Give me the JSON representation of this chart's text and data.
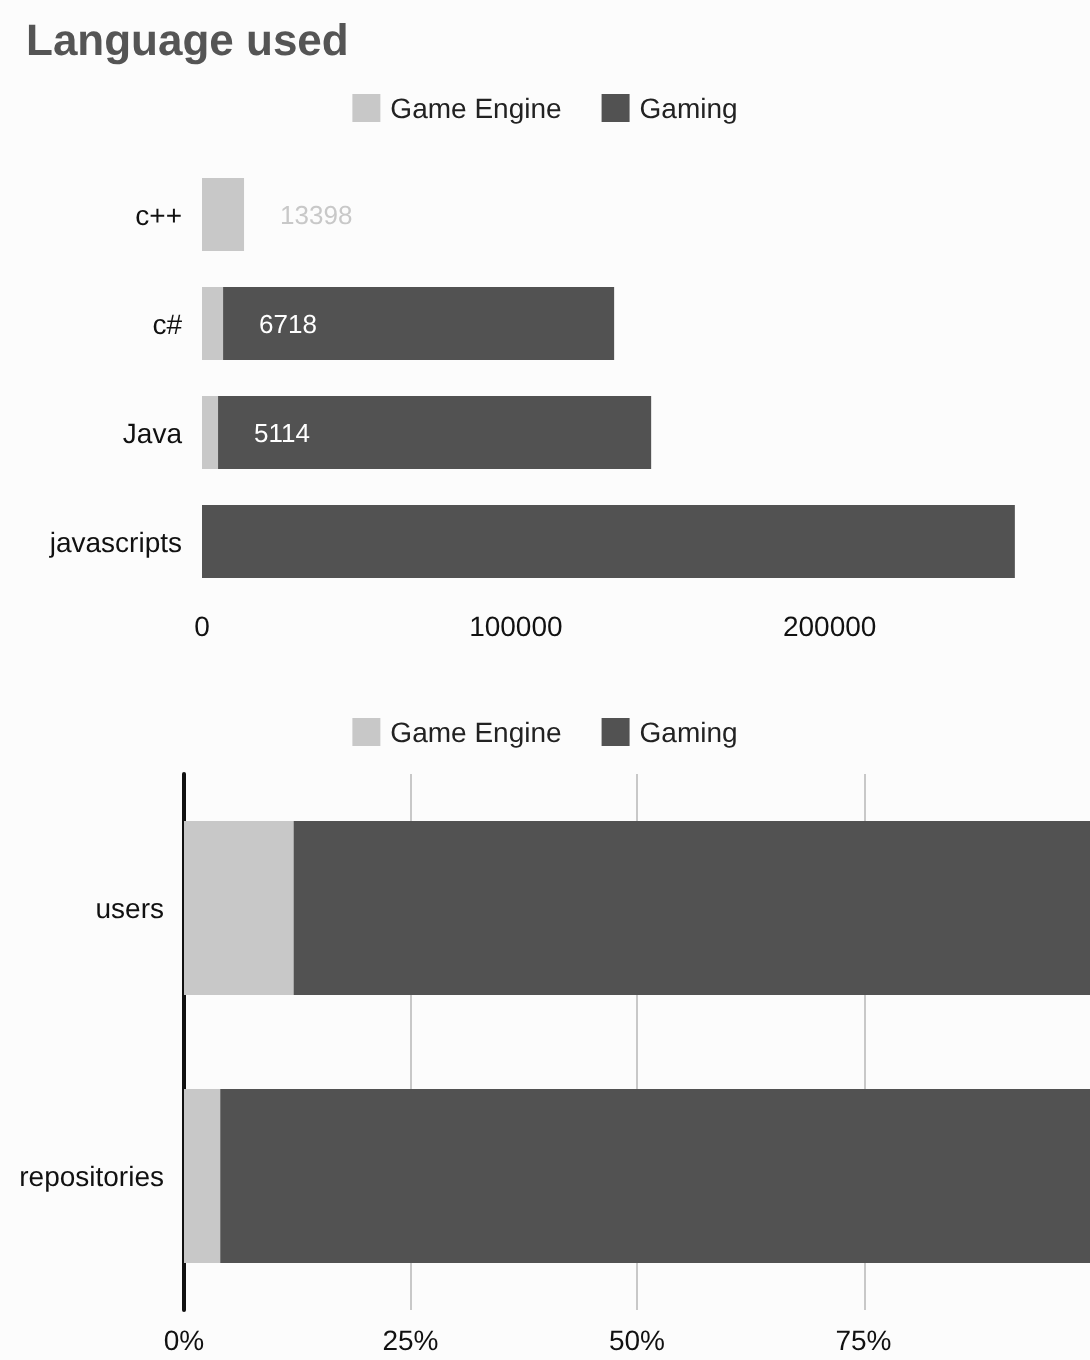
{
  "chart_data": [
    {
      "type": "bar",
      "title": "Language used",
      "orientation": "horizontal",
      "stacked": true,
      "legend": "top",
      "categories": [
        "c++",
        "c#",
        "Java",
        "javascripts"
      ],
      "series": [
        {
          "name": "Game Engine",
          "color": "#c8c8c8",
          "values": [
            13398,
            6718,
            5114,
            null
          ],
          "value_labels": [
            "13398",
            "6718",
            "5114",
            null
          ]
        },
        {
          "name": "Gaming",
          "color": "#525252",
          "values": [
            null,
            124600,
            138000,
            259000
          ]
        }
      ],
      "xlim": [
        0,
        260000
      ],
      "xticks": [
        0,
        100000,
        200000
      ],
      "grid": false
    },
    {
      "type": "bar",
      "orientation": "horizontal",
      "stacked": true,
      "legend": "top",
      "categories": [
        "users",
        "repositories"
      ],
      "series": [
        {
          "name": "Game Engine",
          "color": "#c8c8c8",
          "values": [
            12.1,
            4.0
          ]
        },
        {
          "name": "Gaming",
          "color": "#525252",
          "values": [
            87.9,
            96.0
          ]
        }
      ],
      "xlim": [
        0,
        100
      ],
      "xticks": [
        {
          "value": 0,
          "label": "0%"
        },
        {
          "value": 25,
          "label": "25%"
        },
        {
          "value": 50,
          "label": "50%"
        },
        {
          "value": 75,
          "label": "75%"
        }
      ],
      "grid": "x"
    }
  ]
}
